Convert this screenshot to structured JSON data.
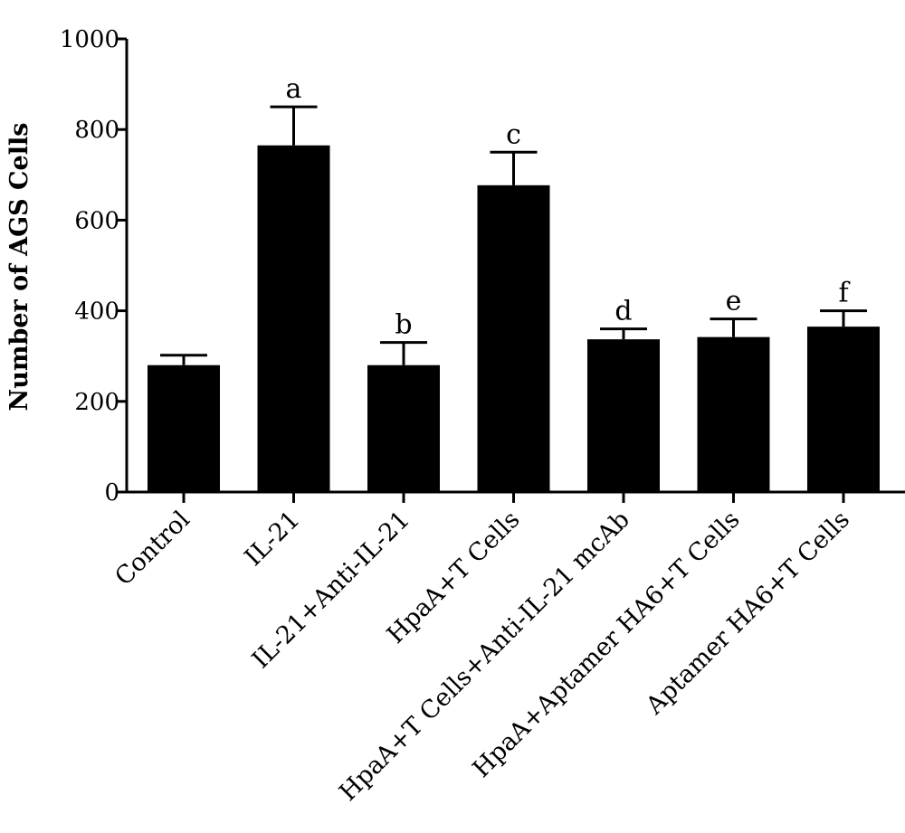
{
  "chart_data": {
    "type": "bar",
    "title": "",
    "xlabel": "",
    "ylabel": "Number of AGS Cells",
    "ylim": [
      0,
      1000
    ],
    "yticks": [
      0,
      200,
      400,
      600,
      800,
      1000
    ],
    "grid": false,
    "legend": "none",
    "bar_color": "#000000",
    "categories": [
      "Control",
      "IL-21",
      "IL-21+Anti-IL-21",
      "HpaA+T Cells",
      "HpaA+T Cells+Anti-IL-21 mcAb",
      "HpaA+Aptamer HA6+T Cells",
      "Aptamer HA6+T Cells"
    ],
    "values": [
      280,
      765,
      280,
      677,
      337,
      342,
      365
    ],
    "error_upper": [
      302,
      850,
      330,
      750,
      360,
      382,
      400
    ],
    "significance_labels": [
      "",
      "a",
      "b",
      "c",
      "d",
      "e",
      "f"
    ]
  }
}
